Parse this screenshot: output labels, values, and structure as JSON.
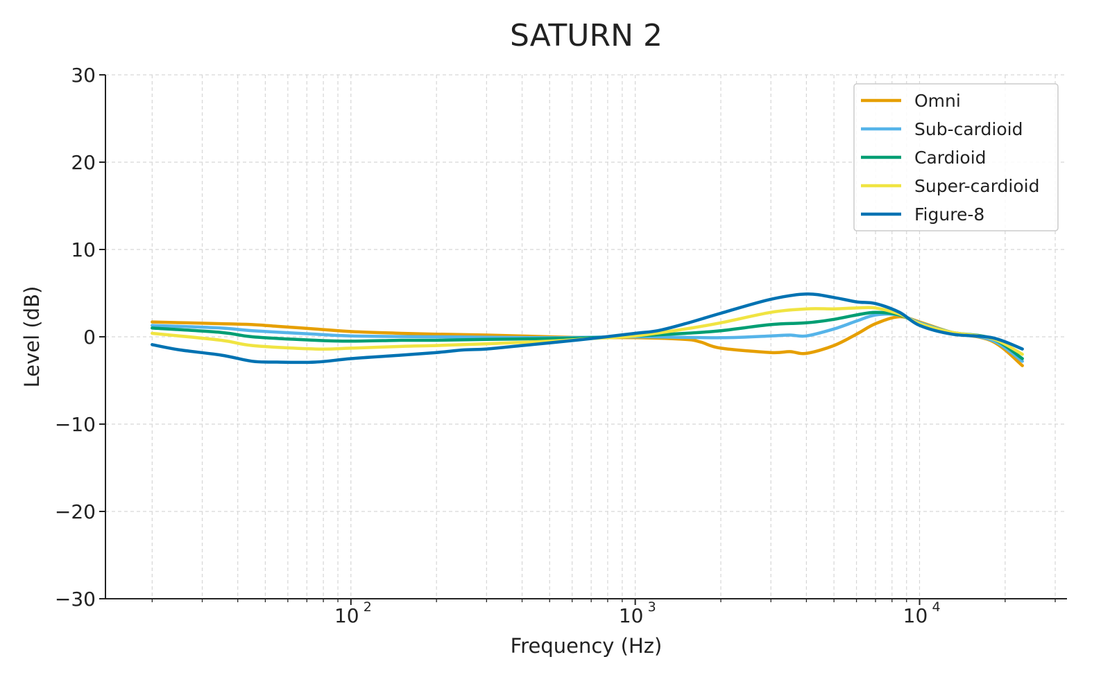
{
  "chart_data": {
    "type": "line",
    "title": "SATURN 2",
    "xlabel": "Frequency (Hz)",
    "ylabel": "Level (dB)",
    "xscale": "log",
    "xlim": [
      13.7,
      33000
    ],
    "ylim": [
      -30,
      30
    ],
    "yticks": [
      30,
      20,
      10,
      0,
      -10,
      -20,
      -30
    ],
    "ytick_labels": [
      "30",
      "20",
      "10",
      "0",
      "−10",
      "−20",
      "−30"
    ],
    "xticks": [
      100,
      1000,
      10000
    ],
    "xtick_bases": [
      "10",
      "10",
      "10"
    ],
    "xtick_exps": [
      "2",
      "3",
      "4"
    ],
    "grid": true,
    "legend_position": "top-right",
    "series": [
      {
        "name": "Omni",
        "color": "#E69F00",
        "x": [
          20,
          35,
          45,
          55,
          75,
          100,
          150,
          200,
          300,
          500,
          700,
          1000,
          1500,
          1700,
          2000,
          3000,
          3500,
          4000,
          5000,
          6000,
          7000,
          8500,
          10000,
          13000,
          18000,
          23000
        ],
        "y": [
          1.7,
          1.5,
          1.4,
          1.2,
          0.9,
          0.6,
          0.4,
          0.3,
          0.2,
          0,
          -0.1,
          -0.1,
          -0.3,
          -0.6,
          -1.3,
          -1.8,
          -1.7,
          -1.9,
          -1.0,
          0.3,
          1.5,
          2.3,
          1.7,
          0.5,
          -0.5,
          -3.3
        ]
      },
      {
        "name": "Sub-cardioid",
        "color": "#56B4E9",
        "x": [
          20,
          35,
          45,
          75,
          100,
          200,
          500,
          1000,
          2000,
          3000,
          3500,
          4000,
          5000,
          6000,
          7000,
          8500,
          10000,
          13000,
          18000,
          23000
        ],
        "y": [
          1.3,
          1.0,
          0.7,
          0.3,
          0.1,
          0,
          -0.1,
          0,
          -0.1,
          0.1,
          0.2,
          0.1,
          0.9,
          1.8,
          2.5,
          2.5,
          1.6,
          0.5,
          -0.4,
          -2.8
        ]
      },
      {
        "name": "Cardioid",
        "color": "#009E73",
        "x": [
          20,
          35,
          45,
          75,
          100,
          150,
          200,
          300,
          500,
          700,
          1000,
          1500,
          2000,
          3000,
          4000,
          5000,
          6000,
          7000,
          8500,
          10000,
          13000,
          18000,
          23000
        ],
        "y": [
          1.0,
          0.5,
          0,
          -0.4,
          -0.5,
          -0.4,
          -0.4,
          -0.3,
          -0.2,
          -0.1,
          0.1,
          0.4,
          0.7,
          1.4,
          1.6,
          2.0,
          2.5,
          2.8,
          2.5,
          1.5,
          0.5,
          -0.2,
          -2.5
        ]
      },
      {
        "name": "Super-cardioid",
        "color": "#F0E442",
        "x": [
          20,
          35,
          45,
          75,
          100,
          150,
          200,
          300,
          500,
          700,
          1000,
          1500,
          2000,
          3000,
          4000,
          5000,
          6000,
          7000,
          8500,
          10000,
          13000,
          18000,
          23000
        ],
        "y": [
          0.4,
          -0.4,
          -1.0,
          -1.4,
          -1.3,
          -1.1,
          -1.0,
          -0.8,
          -0.5,
          -0.2,
          0.1,
          0.9,
          1.6,
          2.8,
          3.2,
          3.2,
          3.3,
          3.3,
          2.6,
          1.5,
          0.5,
          -0.2,
          -2.0
        ]
      },
      {
        "name": "Figure-8",
        "color": "#0072B2",
        "x": [
          20,
          25,
          35,
          45,
          55,
          75,
          100,
          150,
          200,
          250,
          300,
          400,
          500,
          700,
          1000,
          1200,
          1500,
          2000,
          3000,
          4000,
          5000,
          6000,
          7000,
          8500,
          10000,
          13000,
          18000,
          23000
        ],
        "y": [
          -0.9,
          -1.5,
          -2.1,
          -2.8,
          -2.9,
          -2.9,
          -2.5,
          -2.1,
          -1.8,
          -1.5,
          -1.4,
          -1.0,
          -0.7,
          -0.2,
          0.4,
          0.7,
          1.5,
          2.7,
          4.3,
          4.9,
          4.5,
          4.0,
          3.8,
          2.8,
          1.3,
          0.3,
          -0.1,
          -1.4
        ]
      }
    ]
  }
}
